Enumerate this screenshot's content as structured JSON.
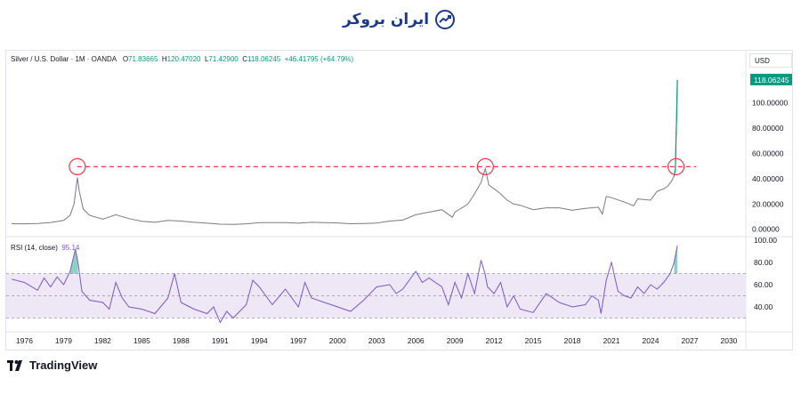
{
  "header": {
    "logo_text": "ایران بروکر"
  },
  "legend": {
    "symbol": "Silver / U.S. Dollar · 1M · OANDA",
    "open_label": "O",
    "open": "71.83665",
    "high_label": "H",
    "high": "120.47020",
    "low_label": "L",
    "low": "71.42900",
    "close_label": "C",
    "close": "118.06245",
    "change": "+46.41795 (+64.79%)"
  },
  "currency": "USD",
  "price_badge": "118.06245",
  "rsi_legend": {
    "label": "RSI (14, close)",
    "value": "95.14"
  },
  "footer": {
    "brand": "TradingView"
  },
  "colors": {
    "price_line": "#787b86",
    "rsi_line": "#7e57c2",
    "rsi_band": "#ede7f6",
    "resistance": "#f23645",
    "badge": "#089981",
    "overbought_fill": "#089981"
  },
  "chart_data": [
    {
      "type": "line",
      "title": "Silver / U.S. Dollar · 1M · OANDA",
      "xlabel": "",
      "ylabel": "",
      "x_ticks": [
        "1976",
        "1979",
        "1982",
        "1985",
        "1988",
        "1991",
        "1994",
        "1997",
        "2000",
        "2003",
        "2006",
        "2009",
        "2012",
        "2015",
        "2018",
        "2021",
        "2024",
        "2027",
        "2030"
      ],
      "xlim": [
        1974.6,
        2031.3
      ],
      "y_ticks": [
        "0.00000",
        "20.00000",
        "40.00000",
        "60.00000",
        "80.00000",
        "100.00000"
      ],
      "ylim": [
        -3,
        118
      ],
      "grid": false,
      "series": [
        {
          "x": [
            1975,
            1976,
            1977,
            1978,
            1979,
            1979.5,
            1979.8,
            1980.05,
            1980.2,
            1980.5,
            1981,
            1982,
            1983,
            1984,
            1985,
            1986,
            1987,
            1988,
            1989,
            1990,
            1991,
            1992,
            1993,
            1994,
            1995,
            1996,
            1997,
            1998,
            1999,
            2000,
            2001,
            2002,
            2003,
            2004,
            2005,
            2006,
            2007,
            2008,
            2008.8,
            2009,
            2010,
            2010.5,
            2011,
            2011.33,
            2011.6,
            2012,
            2012.5,
            2013,
            2013.5,
            2014,
            2015,
            2016,
            2017,
            2018,
            2019,
            2020,
            2020.3,
            2020.6,
            2021,
            2022,
            2022.7,
            2023,
            2024,
            2024.5,
            2025,
            2025.3,
            2025.6,
            2025.8,
            2025.9,
            2025.95,
            2026,
            2026.05
          ],
          "values": [
            4.4,
            4.3,
            4.6,
            5.4,
            7.0,
            11.0,
            20.0,
            41.0,
            30.0,
            16.0,
            11.0,
            8.0,
            11.5,
            8.5,
            6.3,
            5.5,
            7.0,
            6.5,
            5.5,
            4.8,
            4.0,
            3.9,
            4.3,
            5.3,
            5.2,
            5.2,
            4.8,
            5.5,
            5.2,
            5.0,
            4.4,
            4.6,
            4.9,
            6.5,
            7.3,
            11.5,
            13.5,
            15.5,
            9.5,
            13.5,
            20.0,
            28.0,
            37.0,
            48.0,
            35.0,
            32.0,
            28.0,
            23.0,
            20.0,
            19.0,
            15.5,
            17.0,
            17.0,
            15.0,
            16.5,
            17.5,
            12.0,
            26.0,
            25.0,
            21.5,
            18.5,
            24.0,
            23.0,
            30.0,
            32.0,
            34.0,
            38.0,
            42.0,
            48.0,
            72.0,
            90.0,
            118.06
          ]
        }
      ],
      "annotations": {
        "resistance_level": 49.5,
        "circled_peaks": [
          {
            "x": 1980.05,
            "y": 49.5
          },
          {
            "x": 2011.33,
            "y": 49.5
          },
          {
            "x": 2025.95,
            "y": 49.5
          }
        ],
        "last_price": 118.06245
      }
    },
    {
      "type": "line",
      "title": "RSI (14, close)",
      "y_ticks": [
        "40.00",
        "60.00",
        "80.00",
        "100.00"
      ],
      "ylim": [
        20,
        100
      ],
      "bands": {
        "upper": 70,
        "middle": 50,
        "lower": 30
      },
      "series": [
        {
          "x": [
            1975,
            1976,
            1977,
            1977.5,
            1978,
            1978.5,
            1979,
            1979.5,
            1979.9,
            1980.1,
            1980.4,
            1981,
            1982,
            1982.5,
            1983,
            1983.5,
            1984,
            1985,
            1986,
            1987,
            1987.5,
            1988,
            1989,
            1990,
            1990.5,
            1991,
            1991.5,
            1992,
            1993,
            1993.5,
            1994,
            1995,
            1996,
            1997,
            1997.5,
            1998,
            1999,
            2000,
            2001,
            2002,
            2003,
            2004,
            2004.5,
            2005,
            2006,
            2006.5,
            2007,
            2008,
            2008.5,
            2009,
            2009.5,
            2010,
            2010.5,
            2011,
            2011.3,
            2011.5,
            2012,
            2012.5,
            2013,
            2013.5,
            2014,
            2015,
            2016,
            2017,
            2018,
            2019,
            2019.5,
            2020,
            2020.2,
            2020.6,
            2021,
            2021.5,
            2022,
            2022.5,
            2023,
            2023.5,
            2024,
            2024.5,
            2025,
            2025.5,
            2025.8,
            2026,
            2026.05
          ],
          "values": [
            65,
            62,
            55,
            66,
            58,
            67,
            60,
            72,
            92,
            80,
            54,
            46,
            44,
            38,
            62,
            48,
            40,
            38,
            34,
            48,
            70,
            44,
            38,
            34,
            40,
            26,
            36,
            30,
            42,
            64,
            58,
            42,
            56,
            40,
            62,
            48,
            44,
            40,
            36,
            46,
            58,
            60,
            52,
            56,
            72,
            62,
            66,
            58,
            42,
            62,
            48,
            70,
            52,
            82,
            70,
            58,
            52,
            62,
            40,
            50,
            38,
            35,
            52,
            44,
            40,
            42,
            50,
            46,
            34,
            64,
            80,
            54,
            50,
            48,
            58,
            52,
            60,
            56,
            62,
            70,
            80,
            92,
            95.14
          ]
        }
      ]
    }
  ]
}
